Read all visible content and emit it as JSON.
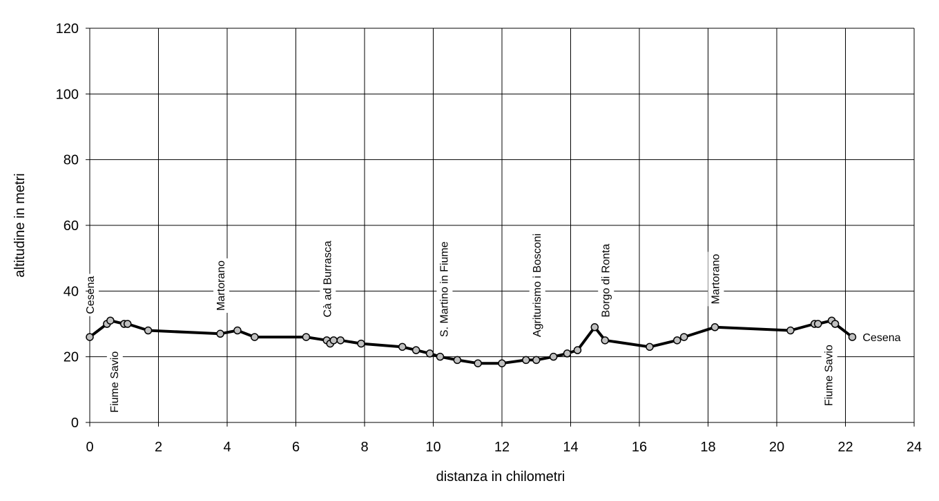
{
  "chart_data": {
    "type": "line",
    "xlabel": "distanza in chilometri",
    "ylabel": "altitudine  in metri",
    "xlim": [
      0,
      24
    ],
    "ylim": [
      0,
      120
    ],
    "xticks": [
      0,
      2,
      4,
      6,
      8,
      10,
      12,
      14,
      16,
      18,
      20,
      22,
      24
    ],
    "yticks": [
      0,
      20,
      40,
      60,
      80,
      100,
      120
    ],
    "grid": true,
    "legend": "none",
    "series_color": "#000000",
    "marker_color": "#c0c0c0",
    "series": [
      {
        "x": [
          0,
          0.5,
          0.6,
          1.0,
          1.1,
          1.7,
          3.8,
          4.3,
          4.8,
          6.3,
          6.9,
          7.0,
          7.1,
          7.3,
          7.9,
          9.1,
          9.5,
          9.9,
          10.2,
          10.7,
          11.3,
          12.0,
          12.7,
          13.0,
          13.5,
          13.9,
          14.2,
          14.7,
          15.0,
          16.3,
          17.1,
          17.3,
          18.2,
          20.4,
          21.1,
          21.2,
          21.6,
          21.7,
          22.2
        ],
        "y": [
          26,
          30,
          31,
          30,
          30,
          28,
          27,
          28,
          26,
          26,
          25,
          24,
          25,
          25,
          24,
          23,
          22,
          21,
          20,
          19,
          18,
          18,
          19,
          19,
          20,
          21,
          22,
          29,
          25,
          23,
          25,
          26,
          29,
          28,
          30,
          30,
          31,
          30,
          26
        ]
      }
    ],
    "annotations": [
      {
        "text": "Cesena",
        "x": 0.0,
        "y": 33,
        "orientation": "vertical"
      },
      {
        "text": "Fiume Savio",
        "x": 0.7,
        "y": 3,
        "orientation": "vertical"
      },
      {
        "text": "Martorano",
        "x": 3.8,
        "y": 34,
        "orientation": "vertical"
      },
      {
        "text": "Cà ad Burrasca",
        "x": 6.9,
        "y": 32,
        "orientation": "vertical"
      },
      {
        "text": "S. Martino in Fiume",
        "x": 10.3,
        "y": 26,
        "orientation": "vertical"
      },
      {
        "text": "Agriturismo i Bosconi",
        "x": 13.0,
        "y": 26,
        "orientation": "vertical"
      },
      {
        "text": "Borgo di Ronta",
        "x": 15.0,
        "y": 32,
        "orientation": "vertical"
      },
      {
        "text": "Martorano",
        "x": 18.2,
        "y": 36,
        "orientation": "vertical"
      },
      {
        "text": "Fiume Savio",
        "x": 21.5,
        "y": 5,
        "orientation": "vertical"
      },
      {
        "text": "Cesena",
        "x": 22.5,
        "y": 26,
        "orientation": "horizontal"
      }
    ]
  }
}
